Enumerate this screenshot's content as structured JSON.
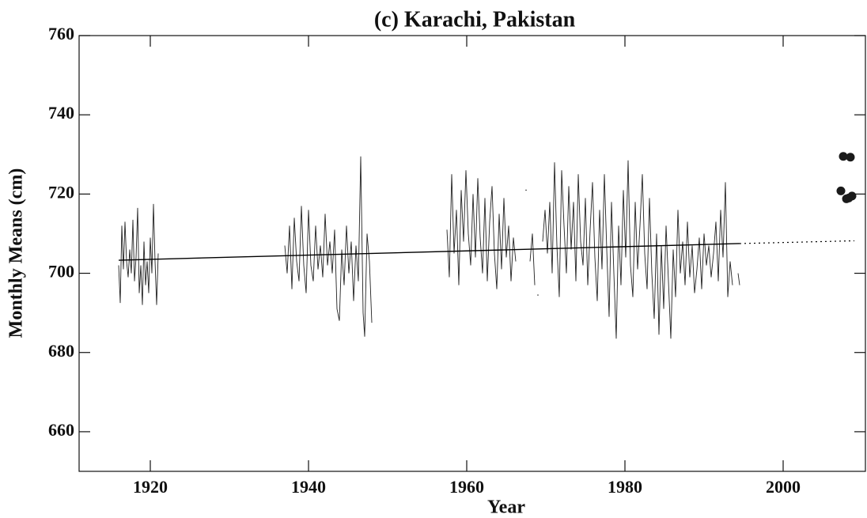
{
  "chart_data": {
    "type": "line",
    "title": "(c) Karachi, Pakistan",
    "xlabel": "Year",
    "ylabel": "Monthly Means (cm)",
    "xlim": [
      1911,
      2010.4
    ],
    "ylim": [
      650,
      760
    ],
    "xticks": [
      1920,
      1940,
      1960,
      1980,
      2000
    ],
    "yticks": [
      660,
      680,
      700,
      720,
      740,
      760
    ],
    "series": [
      {
        "color": "#222222",
        "style": "solid",
        "width": 0.9,
        "x": [
          1916.0,
          1916.2,
          1916.4,
          1916.6,
          1916.8,
          1917.0,
          1917.2,
          1917.4,
          1917.6,
          1917.8,
          1918.0,
          1918.2,
          1918.4,
          1918.6,
          1918.8,
          1919.0,
          1919.2,
          1919.4,
          1919.6,
          1919.8,
          1920.0,
          1920.2,
          1920.4,
          1920.6,
          1920.8,
          1921.0,
          null,
          1937.0,
          1937.3,
          1937.6,
          1937.9,
          1938.2,
          1938.5,
          1938.8,
          1939.1,
          1939.4,
          1939.7,
          1940.0,
          1940.3,
          1940.6,
          1940.9,
          1941.2,
          1941.5,
          1941.8,
          1942.1,
          1942.4,
          1942.7,
          1943.0,
          1943.3,
          1943.6,
          1943.9,
          1944.2,
          1944.5,
          1944.8,
          1945.1,
          1945.4,
          1945.7,
          1946.0,
          1946.3,
          1946.6,
          1946.9,
          1947.1,
          1947.4,
          1947.7,
          1948.0,
          null,
          1957.5,
          1957.8,
          1958.1,
          1958.4,
          1958.7,
          1959.0,
          1959.3,
          1959.6,
          1959.9,
          1960.2,
          1960.5,
          1960.8,
          1961.1,
          1961.4,
          1961.7,
          1962.0,
          1962.3,
          1962.6,
          1962.9,
          1963.2,
          1963.5,
          1963.8,
          1964.1,
          1964.4,
          1964.7,
          1965.0,
          1965.3,
          1965.6,
          1965.9,
          1966.2,
          null,
          1967.5,
          null,
          1968.0,
          1968.3,
          1968.6,
          null,
          1969.0,
          null,
          1969.6,
          1969.9,
          1970.2,
          1970.5,
          1970.8,
          1971.1,
          1971.4,
          1971.7,
          1972.0,
          1972.3,
          1972.6,
          1972.9,
          1973.2,
          1973.5,
          1973.8,
          1974.1,
          1974.4,
          1974.7,
          1975.0,
          1975.3,
          1975.6,
          1975.9,
          1976.2,
          1976.5,
          1976.8,
          1977.1,
          1977.4,
          1977.7,
          1978.0,
          1978.3,
          1978.6,
          1978.9,
          1979.2,
          1979.5,
          1979.8,
          1980.1,
          1980.4,
          1980.7,
          1981.0,
          1981.3,
          1981.6,
          1981.9,
          1982.2,
          1982.5,
          1982.8,
          1983.1,
          1983.4,
          1983.7,
          1984.0,
          1984.3,
          1984.6,
          1984.9,
          1985.2,
          1985.5,
          1985.8,
          1986.1,
          1986.4,
          1986.7,
          1987.0,
          1987.3,
          1987.6,
          1987.9,
          1988.2,
          1988.5,
          1988.8,
          1989.1,
          1989.4,
          1989.7,
          1990.0,
          1990.3,
          1990.6,
          1990.9,
          1991.2,
          1991.5,
          1991.8,
          1992.1,
          1992.4,
          1992.7,
          1993.0,
          1993.3,
          1993.6,
          null,
          1994.3,
          1994.5
        ],
        "values": [
          702,
          692.5,
          712,
          701,
          713,
          703,
          699,
          706,
          700,
          713.5,
          698,
          704,
          716.5,
          695,
          702,
          692,
          708,
          697,
          703,
          695,
          709,
          700,
          717.5,
          703,
          692,
          705,
          null,
          707,
          700,
          712,
          696,
          714,
          703,
          698,
          717,
          702,
          695,
          716,
          702,
          698,
          712,
          701,
          707,
          699,
          715,
          702,
          708,
          700,
          711,
          691,
          688,
          706,
          697,
          712,
          700,
          708,
          693,
          707,
          698,
          729.5,
          690,
          684,
          710,
          703,
          687.5,
          null,
          711,
          699,
          725,
          705,
          716,
          697,
          721,
          708,
          726,
          710,
          702,
          720,
          704,
          724,
          709,
          700,
          719,
          698,
          713,
          722,
          705,
          696,
          715,
          701,
          719,
          704,
          712,
          698,
          709,
          703,
          null,
          721,
          null,
          703,
          710,
          697,
          null,
          694.5,
          null,
          708,
          716,
          705,
          718,
          700,
          728,
          707,
          694,
          726,
          712,
          700,
          722,
          706,
          718,
          698,
          725,
          708,
          702,
          719,
          697,
          711,
          723,
          704,
          693,
          716,
          701,
          725,
          706,
          689,
          718,
          700,
          683.5,
          712,
          697,
          721,
          704,
          728.5,
          702,
          694,
          718,
          701,
          712,
          725,
          705,
          696,
          719,
          700,
          688.5,
          710,
          684.5,
          707,
          691,
          712,
          698,
          683.5,
          706,
          694,
          716,
          700,
          708,
          697,
          713,
          699,
          707,
          695,
          701,
          709,
          696,
          710,
          702,
          707,
          699,
          705,
          713,
          698,
          716,
          704,
          723,
          694,
          703,
          697,
          null,
          700,
          697
        ]
      },
      {
        "color": "#000000",
        "style": "solid",
        "width": 1.4,
        "x": [
          1916,
          1994.5
        ],
        "values": [
          703.3,
          707.5
        ]
      },
      {
        "color": "#000000",
        "style": "dotted",
        "width": 1.2,
        "x": [
          1994.5,
          2009
        ],
        "values": [
          707.5,
          708.2
        ]
      },
      {
        "color": "#1a1a1a",
        "style": "markers",
        "x": [
          2007.3,
          2007.6,
          2008.0,
          2008.3,
          2008.5,
          2008.7
        ],
        "values": [
          720.8,
          729.5,
          718.8,
          719.0,
          729.3,
          719.5
        ]
      }
    ]
  }
}
